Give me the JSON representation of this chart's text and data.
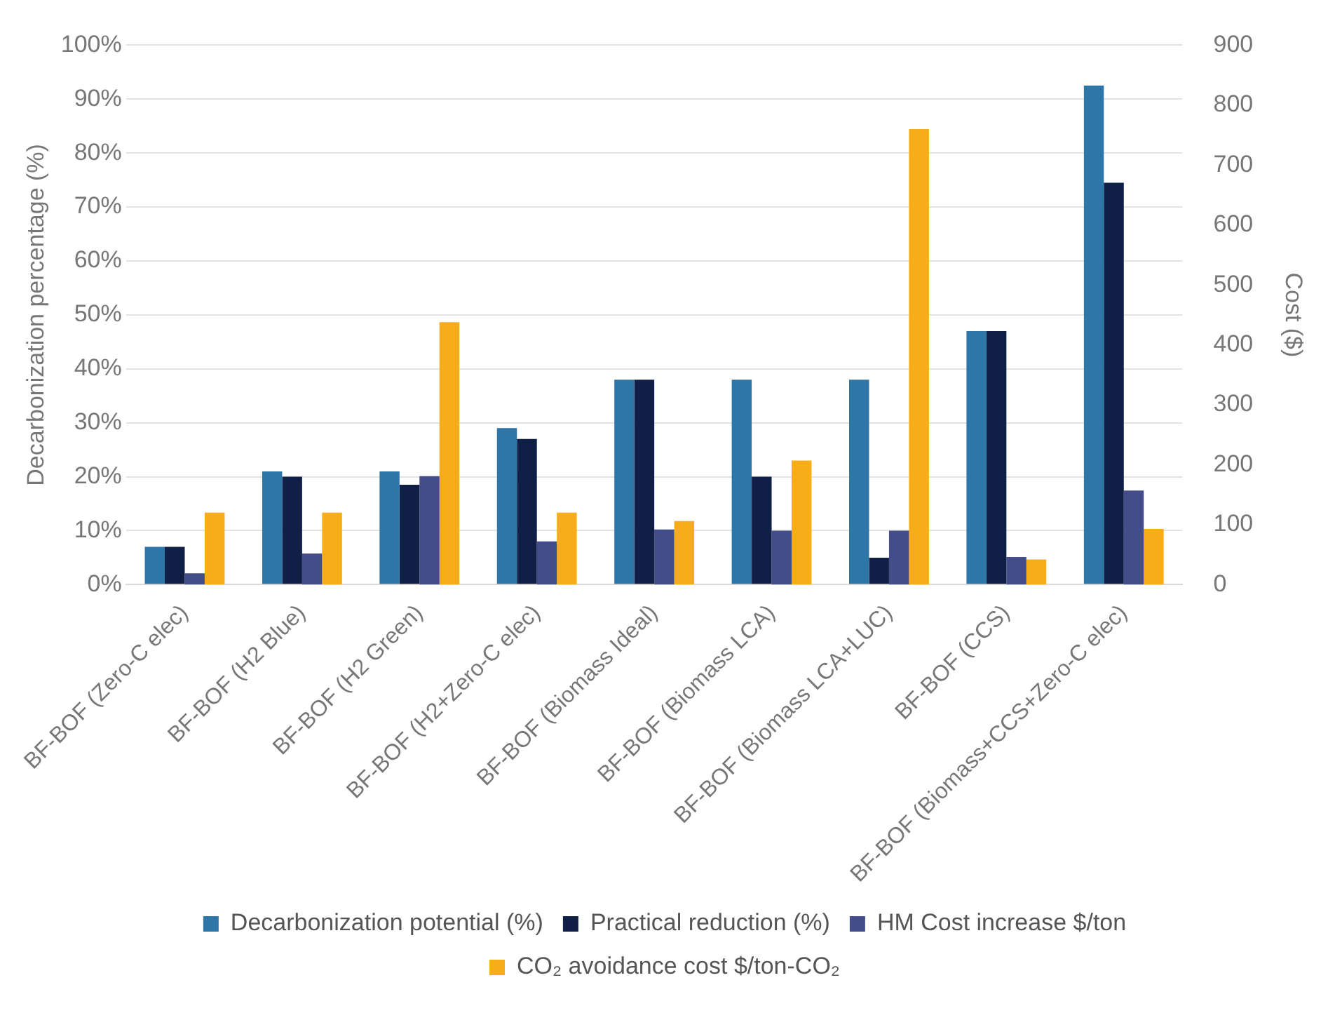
{
  "chart_data": {
    "type": "bar",
    "ylabel": "Decarbonization percentage (%)",
    "y2label": "Cost ($)",
    "categories": [
      "BF-BOF (Zero-C elec)",
      "BF-BOF (H2 Blue)",
      "BF-BOF (H2 Green)",
      "BF-BOF (H2+Zero-C elec)",
      "BF-BOF (Biomass Ideal)",
      "BF-BOF (Biomass LCA)",
      "BF-BOF (Biomass LCA+LUC)",
      "BF-BOF (CCS)",
      "BF-BOF (Biomass+CCS+Zero-C elec)"
    ],
    "series": [
      {
        "name": "Decarbonization potential (%)",
        "color": "#2e75a8",
        "values": [
          7,
          21,
          21,
          29,
          38,
          38,
          38,
          47,
          92.5
        ]
      },
      {
        "name": "Practical reduction (%)",
        "color": "#0f1f45",
        "values": [
          7,
          20,
          18.5,
          27,
          38,
          20,
          5,
          47,
          74.5
        ]
      },
      {
        "name": "HM Cost increase $/ton",
        "color": "#434d8a",
        "axis": "y2",
        "values": [
          19,
          52,
          181,
          72,
          92,
          90,
          90,
          46,
          157
        ]
      },
      {
        "name": "CO₂ avoidance cost $/ton-CO₂",
        "color": "#f7ad19",
        "axis": "y2",
        "values": [
          120,
          120,
          438,
          120,
          106,
          207,
          760,
          42,
          93
        ]
      }
    ],
    "ylim": [
      0,
      100
    ],
    "yticks": [
      {
        "value": 0,
        "label": "0%"
      },
      {
        "value": 10,
        "label": "10%"
      },
      {
        "value": 20,
        "label": "20%"
      },
      {
        "value": 30,
        "label": "30%"
      },
      {
        "value": 40,
        "label": "40%"
      },
      {
        "value": 50,
        "label": "50%"
      },
      {
        "value": 60,
        "label": "60%"
      },
      {
        "value": 70,
        "label": "70%"
      },
      {
        "value": 80,
        "label": "80%"
      },
      {
        "value": 90,
        "label": "90%"
      },
      {
        "value": 100,
        "label": "100%"
      }
    ],
    "y2lim": [
      0,
      900
    ],
    "y2ticks": [
      0,
      100,
      200,
      300,
      400,
      500,
      600,
      700,
      800,
      900
    ],
    "grid": "y",
    "legend": "bottom"
  }
}
